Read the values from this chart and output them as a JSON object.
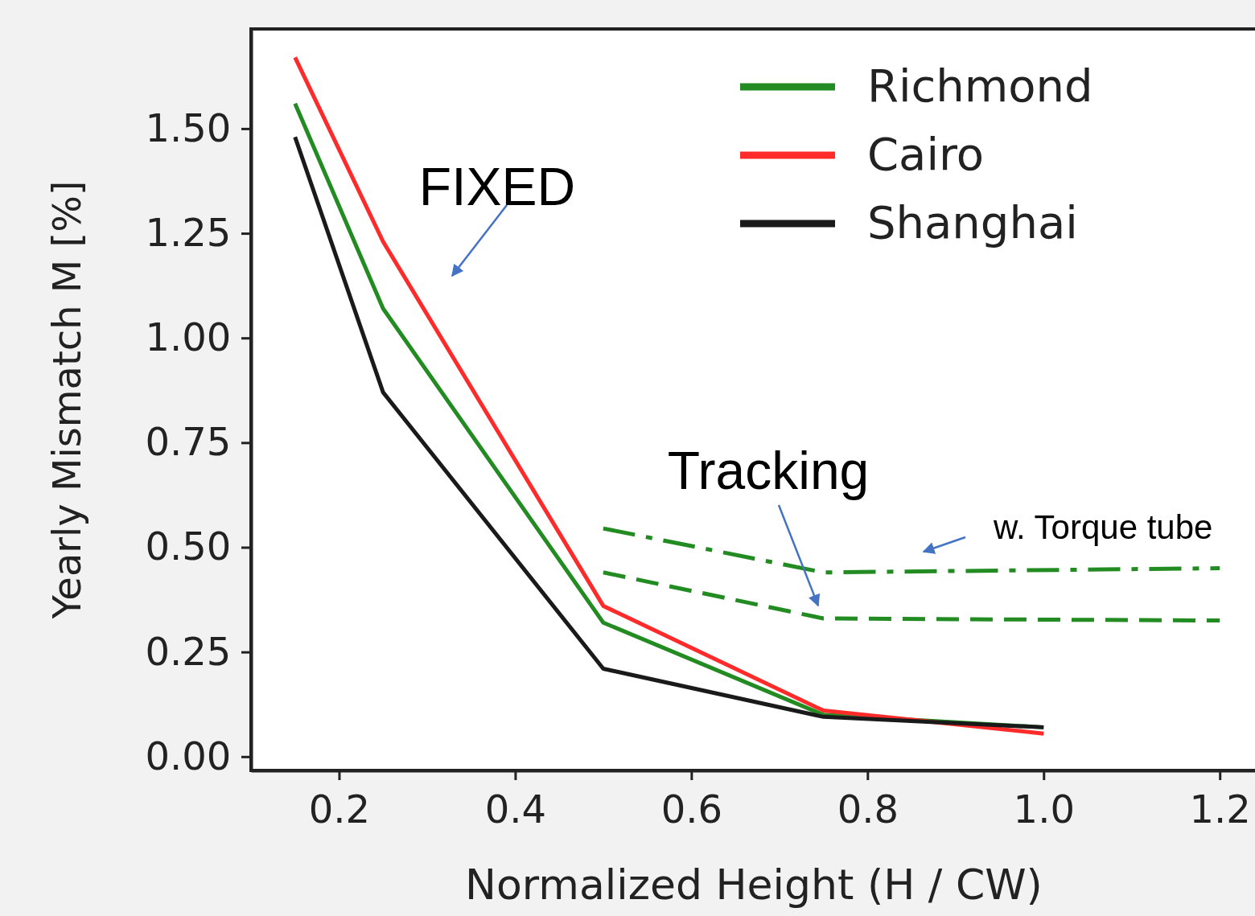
{
  "chart_data": {
    "type": "line",
    "xlabel": "Normalized Height (H / CW)",
    "ylabel": "Yearly Mismatch M [%]",
    "xlim": [
      0.1,
      1.24
    ],
    "ylim": [
      -0.033,
      1.738
    ],
    "xticks": [
      0.2,
      0.4,
      0.6,
      0.8,
      {
        "value": 1.0,
        "label": "1.0"
      },
      1.2
    ],
    "yticks": [
      {
        "value": 0,
        "label": "0.00"
      },
      {
        "value": 0.25,
        "label": "0.25"
      },
      {
        "value": 0.5,
        "label": "0.50"
      },
      {
        "value": 0.75,
        "label": "0.75"
      },
      {
        "value": 1.0,
        "label": "1.00"
      },
      {
        "value": 1.25,
        "label": "1.25"
      },
      {
        "value": 1.5,
        "label": "1.50"
      }
    ],
    "grid": false,
    "legend": "top right",
    "marker": "none",
    "series": [
      {
        "name": "Richmond",
        "color": "#228b22",
        "line_style": "solid",
        "x": [
          0.15,
          0.25,
          0.5,
          0.75,
          1.0
        ],
        "values": [
          1.56,
          1.07,
          0.32,
          0.1,
          0.07
        ]
      },
      {
        "name": "Cairo",
        "color": "#ff2a2a",
        "line_style": "solid",
        "x": [
          0.15,
          0.25,
          0.5,
          0.75,
          1.0
        ],
        "values": [
          1.67,
          1.23,
          0.36,
          0.11,
          0.055
        ]
      },
      {
        "name": "Shanghai",
        "color": "#1a1a1a",
        "line_style": "solid",
        "x": [
          0.15,
          0.25,
          0.5,
          0.75,
          1.0
        ],
        "values": [
          1.48,
          0.87,
          0.21,
          0.095,
          0.07
        ]
      },
      {
        "color": "#228b22",
        "line_style": "dashdot",
        "x": [
          0.5,
          0.75,
          1.2
        ],
        "values": [
          0.545,
          0.44,
          0.45
        ]
      },
      {
        "color": "#228b22",
        "line_style": "dashed",
        "x": [
          0.5,
          0.75,
          1.2
        ],
        "values": [
          0.44,
          0.33,
          0.325
        ]
      }
    ],
    "annotations": [
      "FIXED",
      "Tracking",
      "w. Torque tube"
    ]
  }
}
